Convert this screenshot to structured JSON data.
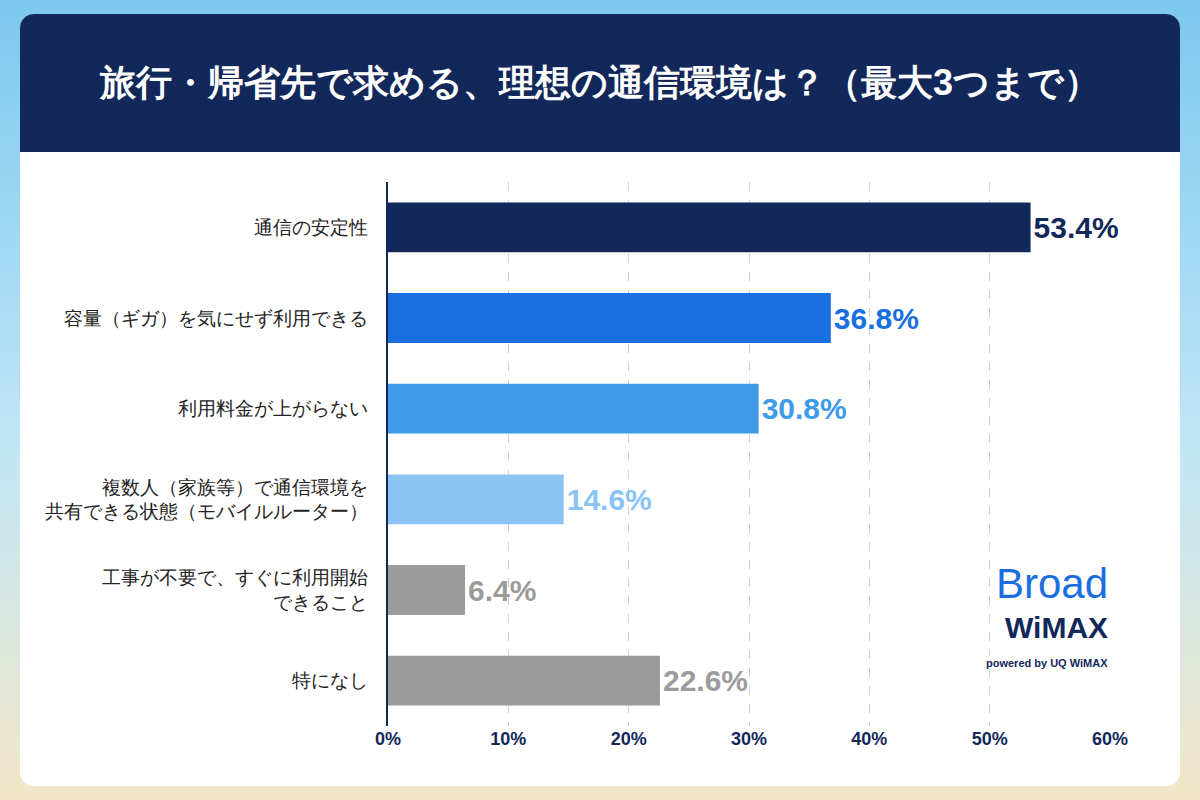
{
  "chart_data": {
    "type": "bar",
    "orientation": "horizontal",
    "title": "旅行・帰省先で求める、理想の通信環境は？（最大3つまで）",
    "categories": [
      "通信の安定性",
      "容量（ギガ）を気にせず利用できる",
      "利用料金が上がらない",
      "複数人（家族等）で通信環境を\n共有できる状態（モバイルルーター）",
      "工事が不要で、すぐに利用開始\nできること",
      "特になし"
    ],
    "values": [
      53.4,
      36.8,
      30.8,
      14.6,
      6.4,
      22.6
    ],
    "value_labels": [
      "53.4%",
      "36.8%",
      "30.8%",
      "14.6%",
      "6.4%",
      "22.6%"
    ],
    "colors": [
      "#13285a",
      "#1a6fe0",
      "#3d9be9",
      "#8ac4f5",
      "#9b9b9b",
      "#9b9b9b"
    ],
    "xlim": [
      0,
      60
    ],
    "xticks": [
      {
        "value": 0,
        "label": "0%"
      },
      {
        "value": 10,
        "label": "10%"
      },
      {
        "value": 20,
        "label": "20%"
      },
      {
        "value": 30,
        "label": "30%"
      },
      {
        "value": 40,
        "label": "40%"
      },
      {
        "value": 50,
        "label": "50%"
      },
      {
        "value": 60,
        "label": "60%"
      }
    ],
    "grid": true,
    "data_labels": true,
    "annotations": [
      "Broad",
      "WiMAX",
      "powered by UQ WiMAX"
    ]
  }
}
